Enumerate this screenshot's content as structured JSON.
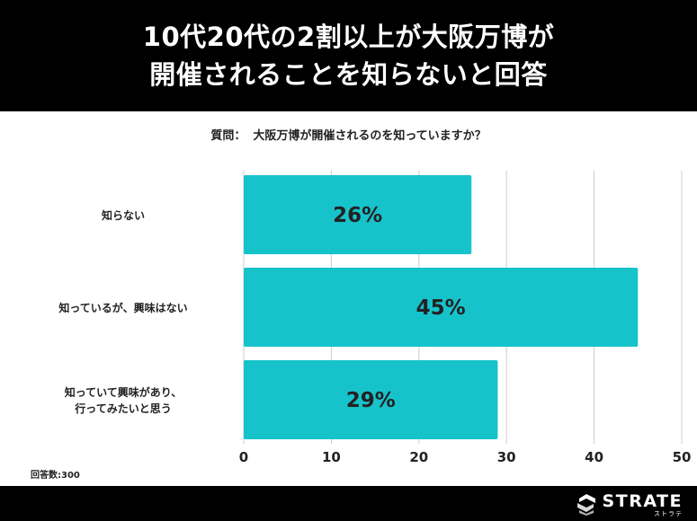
{
  "header": {
    "line1": "10代20代の2割以上が大阪万博が",
    "line2": "開催されることを知らないと回答"
  },
  "question": {
    "label": "質問：",
    "text": "大阪万博が開催されるのを知っていますか？"
  },
  "respondents": "回答数:300",
  "logo": {
    "main": "STRATE",
    "sub": "ストラテ"
  },
  "colors": {
    "bar": "#17c3cb",
    "grid": "#cccccc",
    "header_bg": "#000000"
  },
  "chart_data": {
    "type": "bar",
    "orientation": "horizontal",
    "categories": [
      [
        "知らない"
      ],
      [
        "知っているが、興味はない"
      ],
      [
        "知っていて興味があり、",
        "行ってみたいと思う"
      ]
    ],
    "values": [
      26,
      45,
      29
    ],
    "data_labels": [
      "26%",
      "45%",
      "29%"
    ],
    "xlim": [
      0,
      50
    ],
    "xticks": [
      0,
      10,
      20,
      30,
      40,
      50
    ],
    "grid": true
  }
}
